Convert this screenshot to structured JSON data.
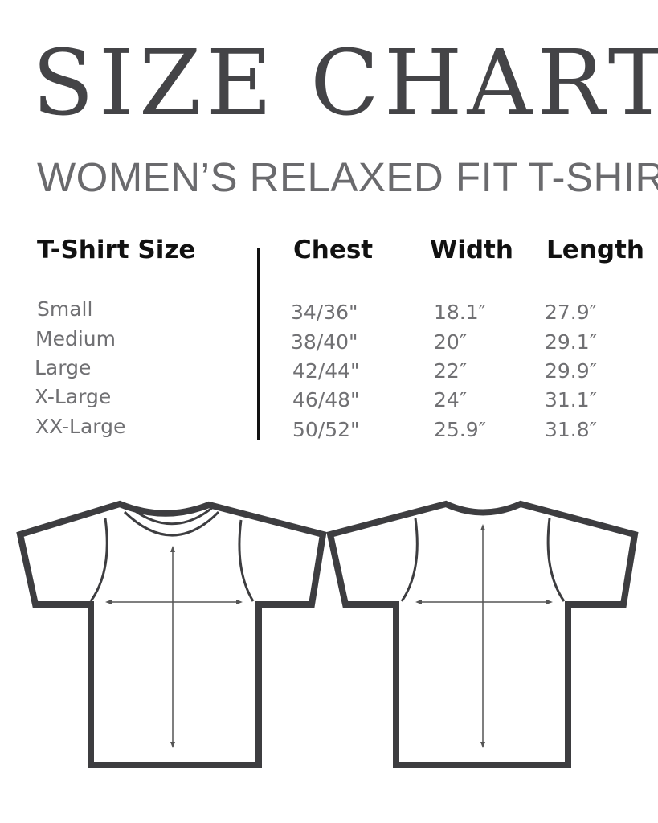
{
  "title": "SIZE CHART",
  "subtitle": "WOMEN’S RELAXED FIT T-SHIRT",
  "table": {
    "headers": [
      "T-Shirt Size",
      "Chest",
      "Width",
      "Length"
    ],
    "rows": [
      [
        "Small",
        "34/36\"",
        "18.1″",
        "27.9″"
      ],
      [
        "Medium",
        "38/40\"",
        "20″",
        "29.1″"
      ],
      [
        "Large",
        "42/44\"",
        "22″",
        "29.9″"
      ],
      [
        "X-Large",
        "46/48\"",
        "24″",
        "31.1″"
      ],
      [
        "XX-Large",
        "50/52\"",
        "25.9″",
        "31.8″"
      ]
    ]
  },
  "colors": {
    "outline": "#3d3d40",
    "text_gray": "#707073"
  }
}
